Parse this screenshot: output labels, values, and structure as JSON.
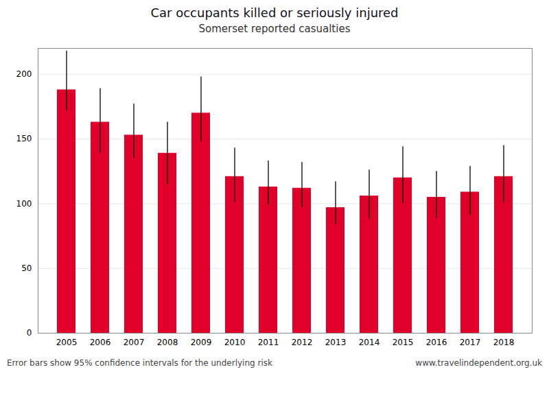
{
  "chart_data": {
    "type": "bar",
    "title": "Car occupants killed or seriously injured",
    "subtitle": "Somerset reported casualties",
    "categories": [
      "2005",
      "2006",
      "2007",
      "2008",
      "2009",
      "2010",
      "2011",
      "2012",
      "2013",
      "2014",
      "2015",
      "2016",
      "2017",
      "2018"
    ],
    "values": [
      188,
      163,
      153,
      139,
      170,
      121,
      113,
      112,
      97,
      106,
      120,
      105,
      109,
      121
    ],
    "err_lower": [
      16,
      24,
      18,
      24,
      22,
      20,
      14,
      15,
      13,
      18,
      20,
      16,
      18,
      20
    ],
    "err_upper": [
      30,
      26,
      24,
      24,
      28,
      22,
      20,
      20,
      20,
      20,
      24,
      20,
      20,
      24
    ],
    "color": "#e0002a",
    "ylim": [
      0,
      220
    ],
    "yticks": [
      0,
      50,
      100,
      150,
      200
    ],
    "grid": true,
    "annotations": [
      "Error bars show 95% confidence intervals for the underlying risk",
      "www.travelindependent.org.uk"
    ]
  }
}
